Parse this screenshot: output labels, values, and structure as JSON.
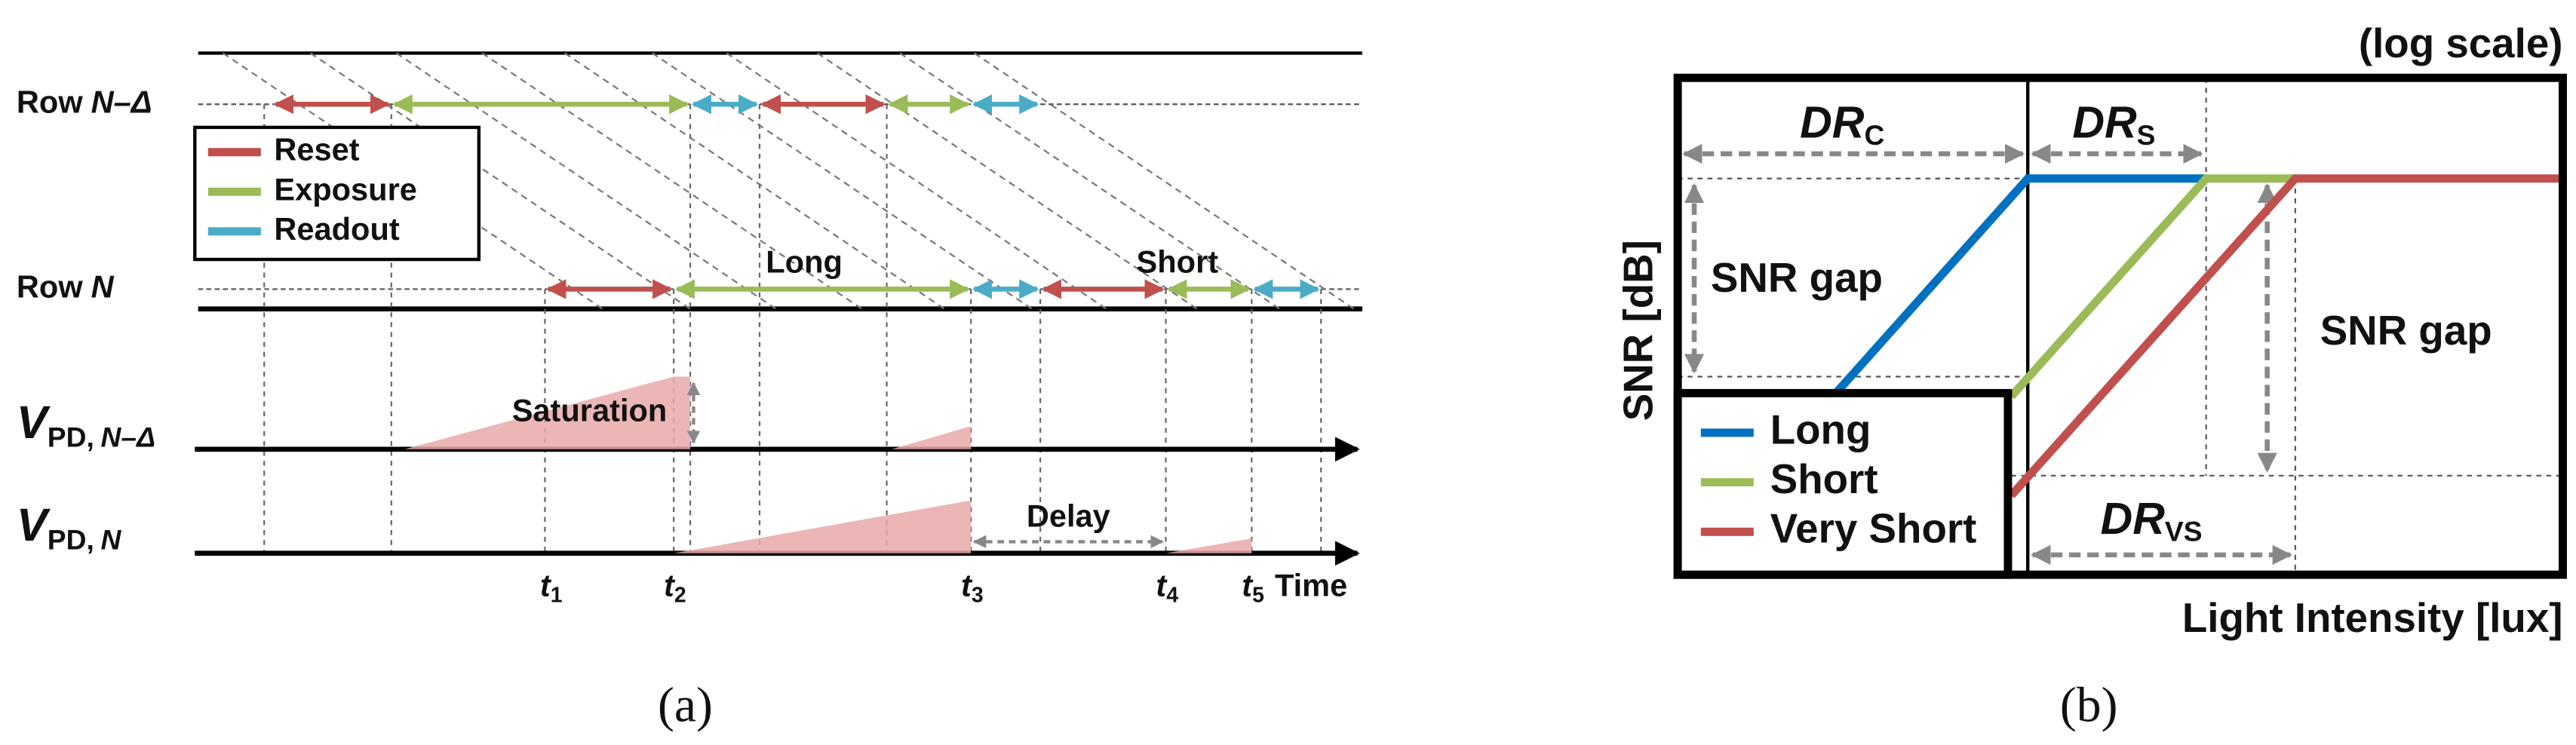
{
  "panel_a": {
    "row_labels": [
      {
        "prefix": "Row",
        "var": "N–Δ"
      },
      {
        "prefix": "Row",
        "var": "N"
      }
    ],
    "legend": [
      "Reset",
      "Exposure",
      "Readout"
    ],
    "annotations": [
      "Long",
      "Short",
      "Saturation",
      "Delay"
    ],
    "signals": [
      {
        "symbol": "V",
        "subscript": "PD,",
        "sub_var": "N–Δ"
      },
      {
        "symbol": "V",
        "subscript": "PD,",
        "sub_var": "N"
      }
    ],
    "time_marks": [
      {
        "symbol": "t",
        "index": "1"
      },
      {
        "symbol": "t",
        "index": "2"
      },
      {
        "symbol": "t",
        "index": "3"
      },
      {
        "symbol": "t",
        "index": "4"
      },
      {
        "symbol": "t",
        "index": "5"
      }
    ],
    "time_axis": "Time",
    "caption": "(a)"
  },
  "panel_b": {
    "scale_note": "(log scale)",
    "ranges": [
      {
        "symbol": "DR",
        "subscript": "C"
      },
      {
        "symbol": "DR",
        "subscript": "S"
      },
      {
        "symbol": "DR",
        "subscript": "VS"
      }
    ],
    "gap_labels": [
      "SNR gap",
      "SNR gap"
    ],
    "y_axis": "SNR [dB]",
    "x_axis": "Light Intensity [lux]",
    "legend": [
      "Long",
      "Short",
      "Very Short"
    ],
    "caption": "(b)"
  }
}
